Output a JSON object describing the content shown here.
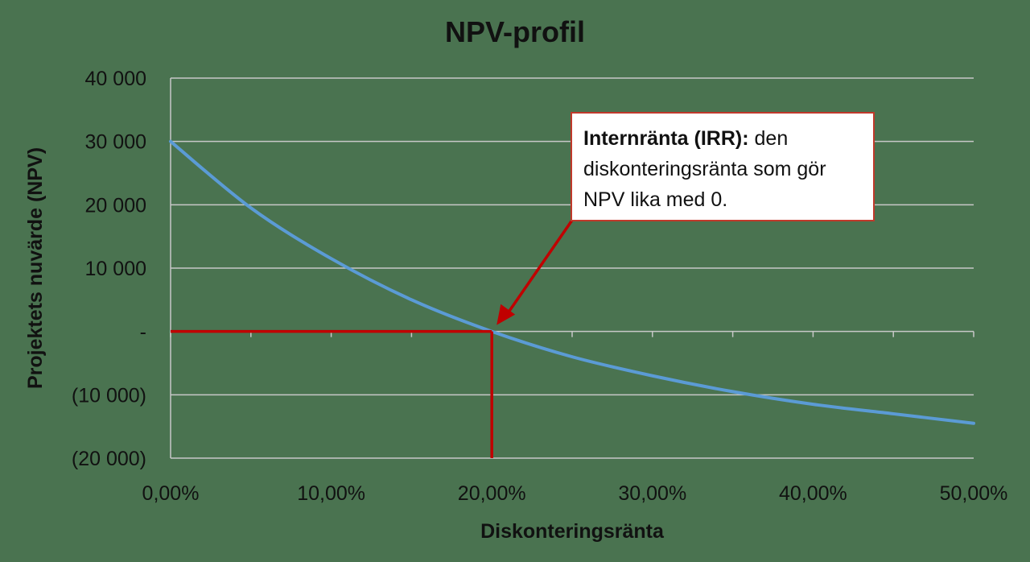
{
  "chart_data": {
    "type": "line",
    "title": "NPV-profil",
    "xlabel": "Diskonteringsränta",
    "ylabel": "Projektets nuvärde (NPV)",
    "x_ticks": [
      "0,00%",
      "10,00%",
      "20,00%",
      "30,00%",
      "40,00%",
      "50,00%"
    ],
    "y_ticks": [
      "40 000",
      "30 000",
      "20 000",
      "10 000",
      "-",
      "(10 000)",
      "(20 000)"
    ],
    "xlim": [
      0,
      0.5
    ],
    "ylim": [
      -20000,
      40000
    ],
    "grid": true,
    "series": [
      {
        "color": "#5b9bd5",
        "x": [
          0,
          0.05,
          0.1,
          0.15,
          0.2,
          0.25,
          0.3,
          0.35,
          0.4,
          0.45,
          0.5
        ],
        "y": [
          30000,
          19500,
          11500,
          5000,
          0,
          -4000,
          -7000,
          -9500,
          -11500,
          -13000,
          -14500
        ]
      }
    ],
    "irr_marker": {
      "x": 0.2,
      "y": 0,
      "color": "#c00000"
    },
    "annotation": {
      "bold_text": "Internränta (IRR):",
      "text": " den diskonteringsränta som gör NPV lika med 0.",
      "border_color": "#c0392b"
    }
  }
}
